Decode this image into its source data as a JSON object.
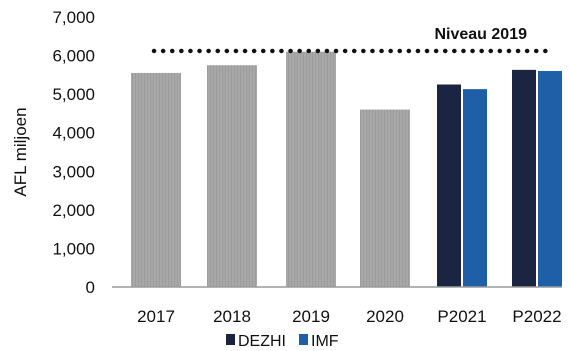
{
  "chart_data": {
    "type": "bar",
    "ylabel": "AFL miljoen",
    "ylim": [
      0,
      7000
    ],
    "yticks": [
      "0",
      "1,000",
      "2,000",
      "3,000",
      "4,000",
      "5,000",
      "6,000",
      "7,000"
    ],
    "categories": [
      "2017",
      "2018",
      "2019",
      "2020",
      "P2021",
      "P2022"
    ],
    "actual": {
      "color": "#a5a5a5",
      "values": [
        5550,
        5750,
        6100,
        4600,
        null,
        null
      ]
    },
    "series": [
      {
        "name": "DEZHI",
        "color": "#1b2440",
        "values": [
          null,
          null,
          null,
          null,
          5250,
          5630
        ]
      },
      {
        "name": "IMF",
        "color": "#1f5fa8",
        "values": [
          null,
          null,
          null,
          null,
          5130,
          5600
        ]
      }
    ],
    "reference_line": {
      "label": "Niveau 2019",
      "value": 6120,
      "style": "dotted"
    },
    "legend": {
      "position": "bottom"
    },
    "grid": false
  }
}
